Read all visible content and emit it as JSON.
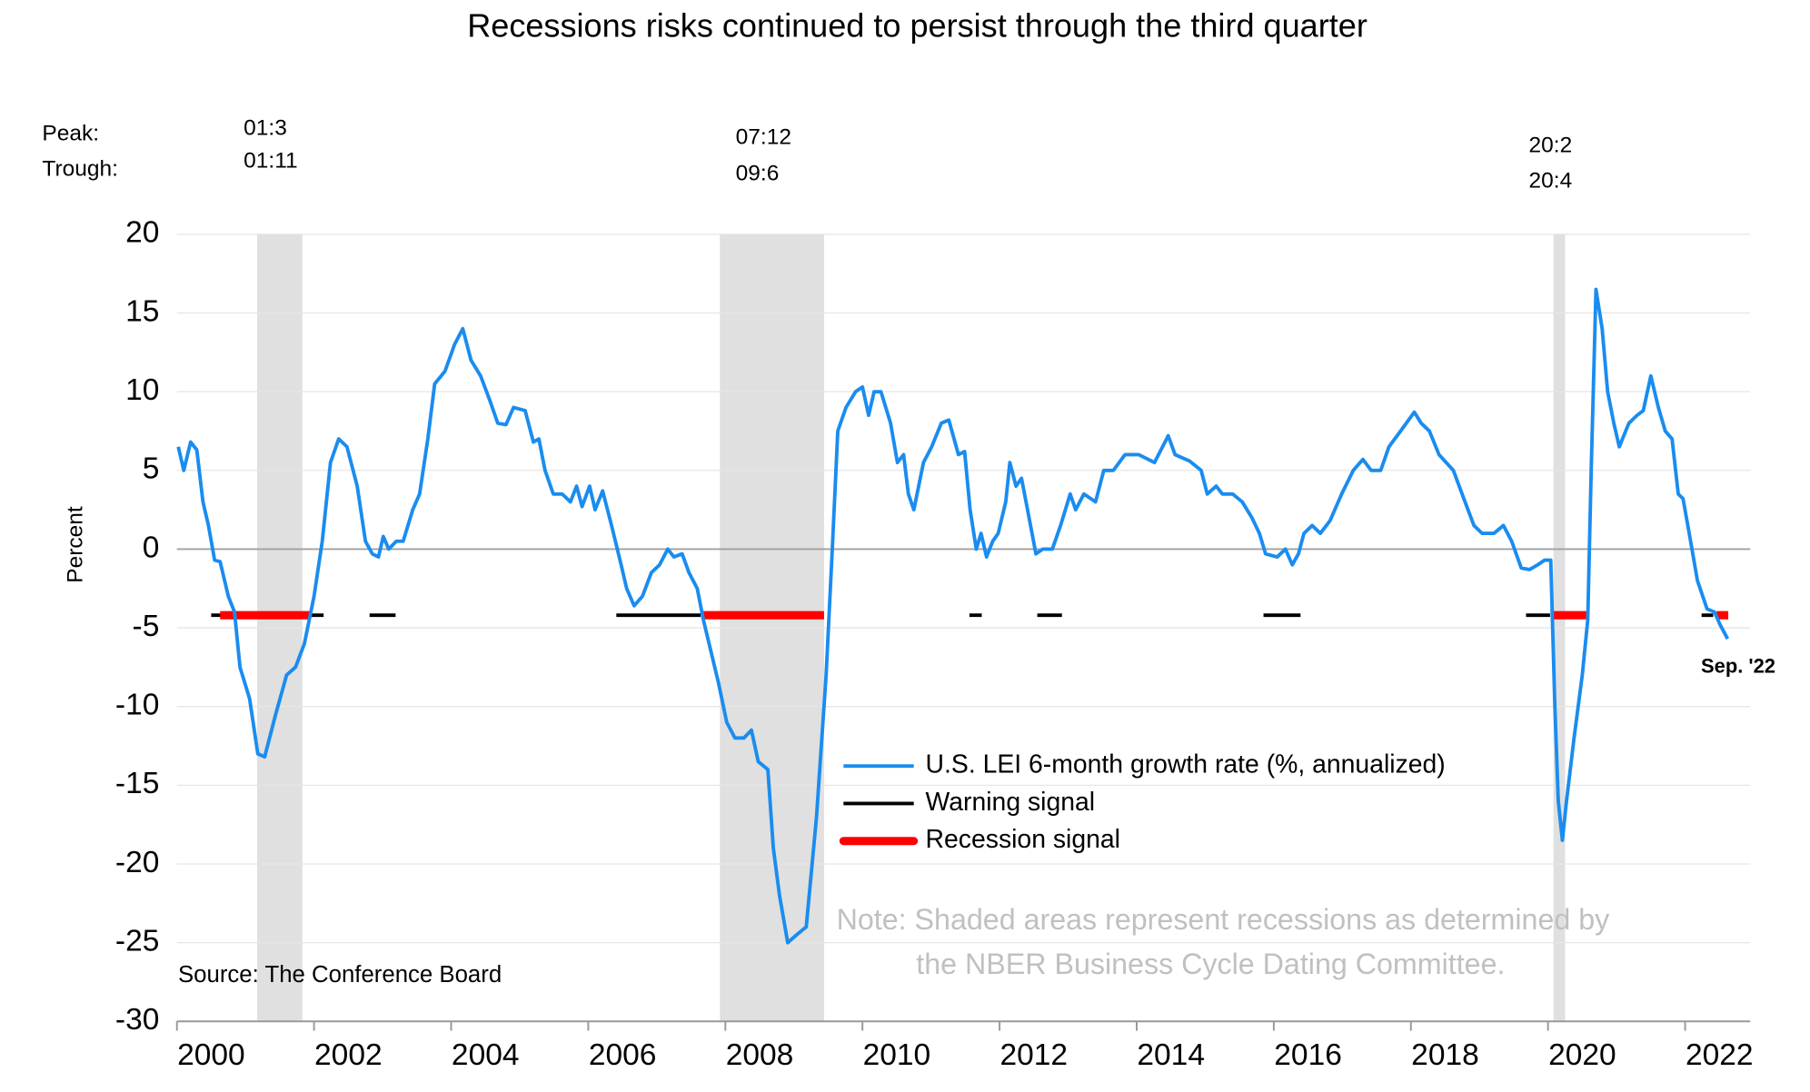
{
  "chart_data": {
    "type": "line",
    "title": "Recessions risks continued to persist through the third quarter",
    "y_label": "Percent",
    "peak_label": "Peak:",
    "trough_label": "Trough:",
    "source": "Source: The Conference Board",
    "note": [
      "Note: Shaded areas represent recessions as determined by",
      "the NBER Business Cycle Dating Committee."
    ],
    "end_label": "Sep. '22",
    "xlim": [
      2000,
      2022.95
    ],
    "xticks": [
      {
        "value": 2000.5,
        "label": "2000"
      },
      {
        "value": 2002.5,
        "label": "2002"
      },
      {
        "value": 2004.5,
        "label": "2004"
      },
      {
        "value": 2006.5,
        "label": "2006"
      },
      {
        "value": 2008.5,
        "label": "2008"
      },
      {
        "value": 2010.5,
        "label": "2010"
      },
      {
        "value": 2012.5,
        "label": "2012"
      },
      {
        "value": 2014.5,
        "label": "2014"
      },
      {
        "value": 2016.5,
        "label": "2016"
      },
      {
        "value": 2018.5,
        "label": "2018"
      },
      {
        "value": 2020.5,
        "label": "2020"
      },
      {
        "value": 2022.5,
        "label": "2022"
      }
    ],
    "ylim": [
      -30,
      20
    ],
    "yticks": [
      -30,
      -25,
      -20,
      -15,
      -10,
      -5,
      0,
      5,
      10,
      15,
      20
    ],
    "grid": true,
    "recessions": [
      {
        "peak": "01:3",
        "trough": "01:11",
        "start": 2001.17,
        "end": 2001.83
      },
      {
        "peak": "07:12",
        "trough": "09:6",
        "start": 2007.92,
        "end": 2009.44
      },
      {
        "peak": "20:2",
        "trough": "20:4",
        "start": 2020.08,
        "end": 2020.25
      }
    ],
    "series": [
      {
        "name": "U.S. LEI 6-month growth rate (%, annualized)",
        "color": "#1a8cf0",
        "width": 3,
        "x": [
          2000.02,
          2000.1,
          2000.2,
          2000.29,
          2000.38,
          2000.46,
          2000.55,
          2000.63,
          2000.75,
          2000.84,
          2000.92,
          2001.06,
          2001.18,
          2001.28,
          2001.44,
          2001.6,
          2001.73,
          2001.86,
          2002.0,
          2002.12,
          2002.24,
          2002.36,
          2002.48,
          2002.63,
          2002.75,
          2002.85,
          2002.94,
          2003.01,
          2003.09,
          2003.2,
          2003.3,
          2003.44,
          2003.54,
          2003.66,
          2003.76,
          2003.91,
          2004.05,
          2004.17,
          2004.29,
          2004.43,
          2004.56,
          2004.68,
          2004.8,
          2004.91,
          2005.08,
          2005.2,
          2005.28,
          2005.37,
          2005.49,
          2005.62,
          2005.74,
          2005.83,
          2005.91,
          2006.02,
          2006.1,
          2006.21,
          2006.34,
          2006.48,
          2006.56,
          2006.67,
          2006.79,
          2006.92,
          2007.04,
          2007.16,
          2007.25,
          2007.37,
          2007.47,
          2007.59,
          2007.68,
          2007.79,
          2007.9,
          2008.02,
          2008.14,
          2008.27,
          2008.38,
          2008.48,
          2008.62,
          2008.7,
          2008.79,
          2008.91,
          2009.04,
          2009.18,
          2009.33,
          2009.47,
          2009.56,
          2009.64,
          2009.76,
          2009.9,
          2010.0,
          2010.09,
          2010.17,
          2010.27,
          2010.41,
          2010.51,
          2010.6,
          2010.67,
          2010.75,
          2010.89,
          2011.01,
          2011.15,
          2011.26,
          2011.4,
          2011.49,
          2011.57,
          2011.66,
          2011.73,
          2011.81,
          2011.9,
          2011.98,
          2012.09,
          2012.15,
          2012.24,
          2012.32,
          2012.43,
          2012.53,
          2012.63,
          2012.77,
          2012.89,
          2013.03,
          2013.11,
          2013.23,
          2013.4,
          2013.52,
          2013.66,
          2013.83,
          2014.03,
          2014.26,
          2014.46,
          2014.56,
          2014.77,
          2014.94,
          2015.03,
          2015.16,
          2015.25,
          2015.4,
          2015.54,
          2015.68,
          2015.79,
          2015.88,
          2016.05,
          2016.17,
          2016.27,
          2016.36,
          2016.44,
          2016.56,
          2016.68,
          2016.82,
          2016.99,
          2017.16,
          2017.3,
          2017.42,
          2017.56,
          2017.68,
          2017.85,
          2018.05,
          2018.15,
          2018.27,
          2018.41,
          2018.62,
          2018.79,
          2018.92,
          2019.04,
          2019.21,
          2019.35,
          2019.47,
          2019.61,
          2019.73,
          2019.85,
          2019.95,
          2020.04,
          2020.1,
          2020.15,
          2020.21,
          2020.27,
          2020.38,
          2020.5,
          2020.58,
          2020.63,
          2020.7,
          2020.79,
          2020.87,
          2020.96,
          2021.04,
          2021.18,
          2021.3,
          2021.39,
          2021.5,
          2021.61,
          2021.71,
          2021.81,
          2021.9,
          2021.97,
          2022.06,
          2022.18,
          2022.32,
          2022.43,
          2022.51,
          2022.62
        ],
        "values": [
          6.5,
          5.0,
          6.8,
          6.3,
          3.0,
          1.5,
          -0.7,
          -0.8,
          -3.0,
          -4.0,
          -7.5,
          -9.5,
          -13.0,
          -13.2,
          -10.5,
          -8.0,
          -7.5,
          -6.0,
          -3.0,
          0.5,
          5.5,
          7.0,
          6.5,
          4.0,
          0.5,
          -0.3,
          -0.5,
          0.8,
          0.0,
          0.5,
          0.5,
          2.5,
          3.5,
          7.0,
          10.5,
          11.3,
          13.0,
          14.0,
          12.0,
          11.0,
          9.5,
          8.0,
          7.9,
          9.0,
          8.8,
          6.8,
          7.0,
          5.0,
          3.5,
          3.5,
          3.0,
          4.0,
          2.7,
          4.0,
          2.5,
          3.7,
          1.5,
          -1.0,
          -2.5,
          -3.6,
          -3.0,
          -1.5,
          -1.0,
          0.0,
          -0.5,
          -0.3,
          -1.5,
          -2.5,
          -4.5,
          -6.5,
          -8.5,
          -11.0,
          -12.0,
          -12.0,
          -11.5,
          -13.5,
          -14.0,
          -19.0,
          -22.0,
          -25.0,
          -24.5,
          -24.0,
          -17.0,
          -8.0,
          0.0,
          7.5,
          9.0,
          10.0,
          10.3,
          8.5,
          10.0,
          10.0,
          8.0,
          5.5,
          6.0,
          3.5,
          2.5,
          5.5,
          6.5,
          8.0,
          8.2,
          6.0,
          6.2,
          2.5,
          0.0,
          1.0,
          -0.5,
          0.5,
          1.0,
          3.0,
          5.5,
          4.0,
          4.5,
          2.0,
          -0.3,
          0.0,
          0.0,
          1.5,
          3.5,
          2.5,
          3.5,
          3.0,
          5.0,
          5.0,
          6.0,
          6.0,
          5.5,
          7.2,
          6.0,
          5.6,
          5.0,
          3.5,
          4.0,
          3.5,
          3.5,
          3.0,
          2.0,
          1.0,
          -0.3,
          -0.5,
          0.0,
          -1.0,
          -0.3,
          1.0,
          1.5,
          1.0,
          1.8,
          3.5,
          5.0,
          5.7,
          5.0,
          5.0,
          6.5,
          7.5,
          8.7,
          8.0,
          7.5,
          6.0,
          5.0,
          3.0,
          1.5,
          1.0,
          1.0,
          1.5,
          0.5,
          -1.2,
          -1.3,
          -1.0,
          -0.7,
          -0.7,
          -10.0,
          -16.0,
          -18.5,
          -16.0,
          -12.0,
          -8.0,
          -4.5,
          5.0,
          16.5,
          14.0,
          10.0,
          8.0,
          6.5,
          8.0,
          8.5,
          8.8,
          11.0,
          9.0,
          7.5,
          7.0,
          3.5,
          3.2,
          1.0,
          -2.0,
          -3.8,
          -4.0,
          -4.8,
          -5.7
        ]
      },
      {
        "name": "Warning signal",
        "color": "#000000",
        "width": 3,
        "x": [
          2000.5,
          2002.14,
          2002.5,
          2002.81,
          2003.19,
          2004.8,
          2006.41,
          2007.64,
          2009.6,
          2011.56,
          2011.74,
          2012.1,
          2012.55,
          2012.91,
          2014.4,
          2015.85,
          2016.39,
          2018.0,
          2019.68,
          2020.03,
          2021.1,
          2022.24,
          2022.41
        ],
        "values": [
          -4.2,
          -4.2,
          null,
          -4.2,
          -4.2,
          null,
          -4.2,
          -4.2,
          null,
          -4.2,
          -4.2,
          null,
          -4.2,
          -4.2,
          null,
          -4.2,
          -4.2,
          null,
          -4.2,
          -4.2,
          null,
          -4.2,
          -4.2
        ]
      },
      {
        "name": "Recession signal",
        "color": "#ff0000",
        "width": 7,
        "x": [
          2000.63,
          2001.95,
          2004.8,
          2007.68,
          2009.44,
          2014.8,
          2020.08,
          2020.59,
          2021.5,
          2022.46,
          2022.63
        ],
        "values": [
          -4.2,
          -4.2,
          null,
          -4.2,
          -4.2,
          null,
          -4.2,
          -4.2,
          null,
          -4.2,
          -4.2
        ]
      }
    ]
  }
}
